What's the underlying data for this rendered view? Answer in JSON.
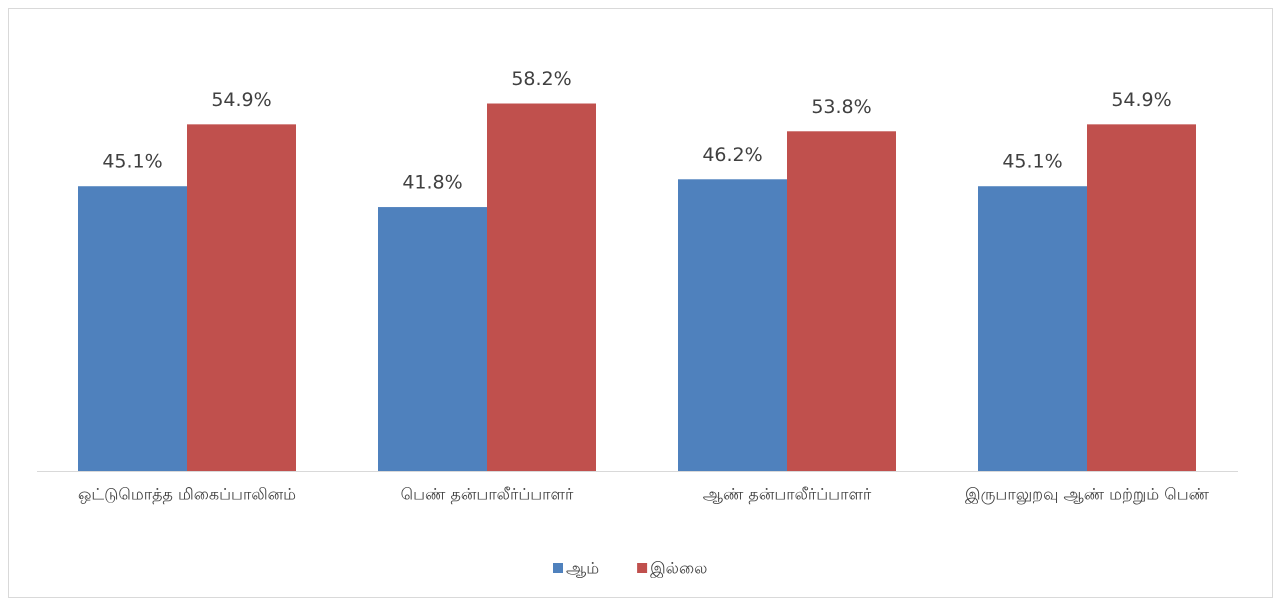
{
  "chart_data": {
    "type": "bar",
    "categories": [
      "ஒட்டுமொத்த மிகைப்பாலினம்",
      "பெண் தன்பாலீர்ப்பாளர்",
      "ஆண் தன்பாலீர்ப்பாளர்",
      "இருபாலுறவு ஆண் மற்றும் பெண்"
    ],
    "series": [
      {
        "name": "ஆம்",
        "color": "#4f81bd",
        "values": [
          45.1,
          41.8,
          46.2,
          45.1
        ],
        "value_labels": [
          "45.1%",
          "41.8%",
          "46.2%",
          "45.1%"
        ]
      },
      {
        "name": "இல்லை",
        "color": "#c0504d",
        "values": [
          54.9,
          58.2,
          53.8,
          54.9
        ],
        "value_labels": [
          "54.9%",
          "58.2%",
          "53.8%",
          "54.9%"
        ]
      }
    ],
    "ylim": [
      0,
      70
    ],
    "legend": "bottom"
  }
}
